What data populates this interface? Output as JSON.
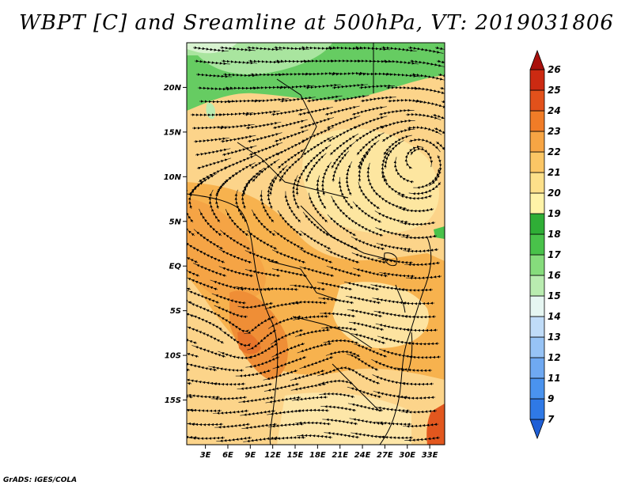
{
  "title": "WBPT [C] and Sreamline at 500hPa, VT: 2019031806",
  "credit": "GrADS: IGES/COLA",
  "map": {
    "lon_labels": [
      "3E",
      "6E",
      "9E",
      "12E",
      "15E",
      "18E",
      "21E",
      "24E",
      "27E",
      "30E",
      "33E"
    ],
    "lon_values": [
      3,
      6,
      9,
      12,
      15,
      18,
      21,
      24,
      27,
      30,
      33
    ],
    "lat_labels": [
      "20N",
      "15N",
      "10N",
      "5N",
      "EQ",
      "5S",
      "10S",
      "15S"
    ],
    "lat_values": [
      20,
      15,
      10,
      5,
      0,
      -5,
      -10,
      -15
    ],
    "lon_range": [
      0.5,
      35
    ],
    "lat_range": [
      -20,
      25
    ]
  },
  "colorbar": {
    "labels": [
      "7",
      "9",
      "11",
      "12",
      "13",
      "14",
      "15",
      "16",
      "17",
      "18",
      "19",
      "20",
      "21",
      "22",
      "23",
      "24",
      "25",
      "26"
    ],
    "colors": [
      "#1f5fd6",
      "#2f79e6",
      "#4a93ee",
      "#6fa9f2",
      "#97c3f5",
      "#c0dcf8",
      "#e6f6f2",
      "#b9ecb0",
      "#86dc7c",
      "#49c24a",
      "#2fae36",
      "#fff3a8",
      "#fde08a",
      "#fbc665",
      "#f7a544",
      "#f07c27",
      "#e2511b",
      "#cc2a12",
      "#a8100c"
    ]
  }
}
